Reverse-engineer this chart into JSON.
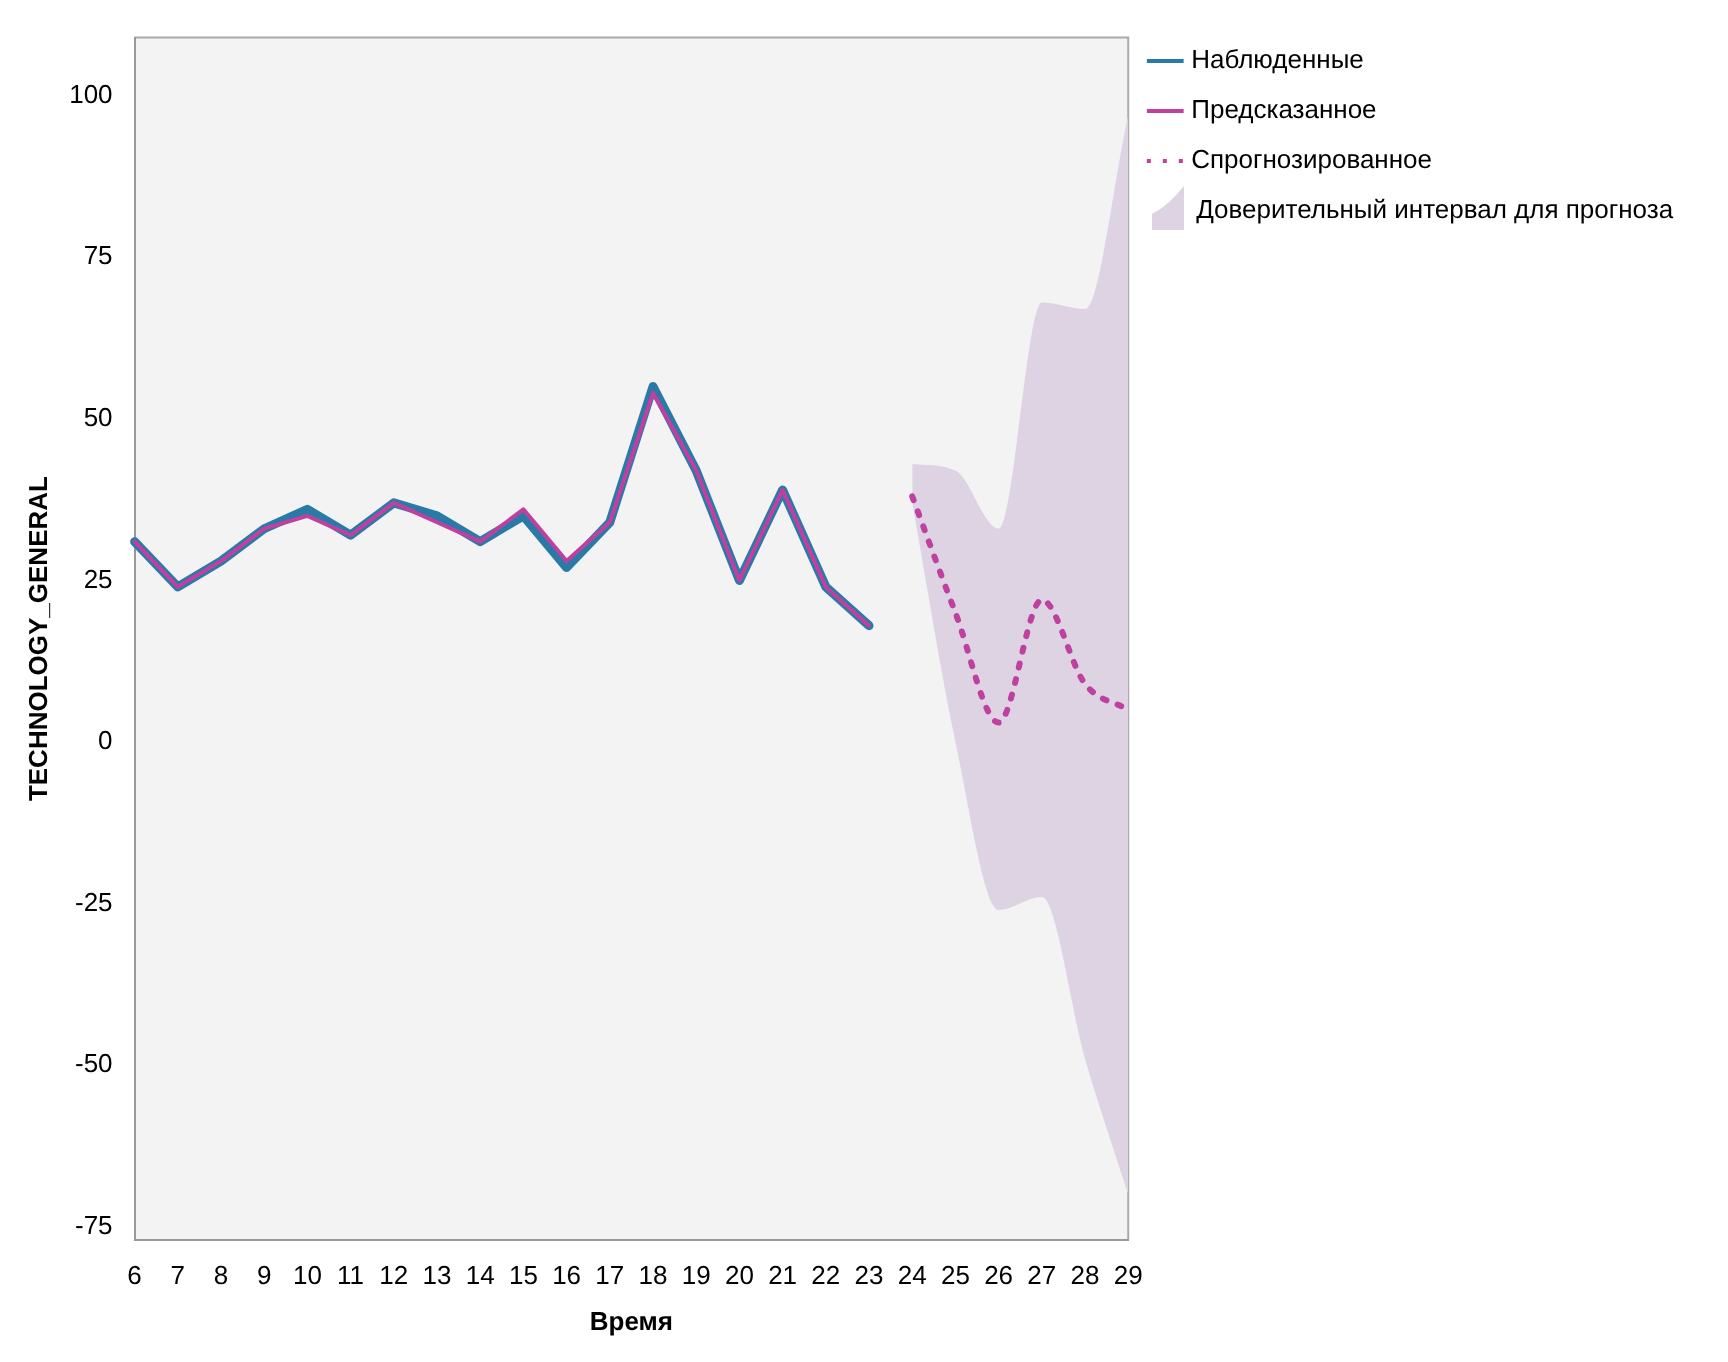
{
  "chart_data": {
    "type": "line",
    "xlabel": "Время",
    "ylabel": "TECHNOLOGY_GENERAL",
    "categories": [
      "6",
      "7",
      "8",
      "9",
      "10",
      "11",
      "12",
      "13",
      "14",
      "15",
      "16",
      "17",
      "18",
      "19",
      "20",
      "21",
      "22",
      "23",
      "24",
      "25",
      "26",
      "27",
      "28",
      "29"
    ],
    "series": [
      {
        "name": "Наблюденные",
        "color": "#2a7aa8",
        "values": [
          31,
          24,
          28,
          33,
          36,
          32,
          37,
          35,
          31,
          35,
          27,
          34,
          55,
          42,
          25,
          39,
          24,
          18,
          null,
          null,
          null,
          null,
          null,
          null
        ]
      },
      {
        "name": "Предсказанное",
        "color": "#c040a0",
        "values": [
          31,
          24,
          28,
          33,
          35,
          32,
          37,
          34,
          31,
          36,
          28,
          34,
          54,
          42,
          25,
          39,
          24,
          18,
          null,
          null,
          null,
          null,
          null,
          null
        ]
      },
      {
        "name": "Спрогнозированное",
        "color": "#c040a0",
        "line_style": "dotted",
        "values": [
          null,
          null,
          null,
          null,
          null,
          null,
          null,
          null,
          null,
          null,
          null,
          null,
          null,
          null,
          null,
          null,
          null,
          null,
          38,
          20,
          3,
          22,
          9,
          5
        ],
        "lower": [
          null,
          null,
          null,
          null,
          null,
          null,
          null,
          null,
          null,
          null,
          null,
          null,
          null,
          null,
          null,
          null,
          null,
          null,
          37,
          0,
          -26,
          -24,
          -49,
          -70
        ],
        "upper": [
          null,
          null,
          null,
          null,
          null,
          null,
          null,
          null,
          null,
          null,
          null,
          null,
          null,
          null,
          null,
          null,
          null,
          null,
          43,
          42,
          33,
          68,
          67,
          97
        ]
      }
    ],
    "annotations": [
      "Доверительный интервал для прогноза"
    ],
    "ylim": [
      -77,
      109
    ],
    "yticks": [
      -75,
      -50,
      -25,
      0,
      25,
      50,
      75,
      100
    ],
    "grid": false,
    "legend": "right",
    "marker": "none",
    "line_style": "solid"
  }
}
